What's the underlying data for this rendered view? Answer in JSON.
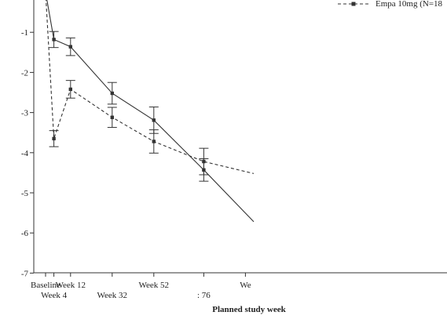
{
  "chart_data": {
    "type": "line",
    "title": "",
    "xlabel": "Planned study week",
    "ylabel": "",
    "x_tick_labels": [
      {
        "label": "Baseline",
        "week": 0,
        "row": 1
      },
      {
        "label": "Week 4",
        "week": 4,
        "row": 2
      },
      {
        "label": "Week 12",
        "week": 12,
        "row": 1
      },
      {
        "label": "Week 32",
        "week": 32,
        "row": 2
      },
      {
        "label": "Week 52",
        "week": 52,
        "row": 1
      },
      {
        "label": ": 76",
        "week": 76,
        "row": 2
      },
      {
        "label": "We",
        "week": 96,
        "row": 1
      }
    ],
    "y_ticks": [
      -1,
      -2,
      -3,
      -4,
      -5,
      -6,
      -7
    ],
    "ylim": [
      -7,
      0
    ],
    "xlim": [
      0,
      100
    ],
    "grid": false,
    "legend_position": "top-right",
    "series": [
      {
        "name": "",
        "style": "solid",
        "color": "#333333",
        "points": [
          {
            "x": 0,
            "y": 0,
            "err": null
          },
          {
            "x": 4,
            "y": -1.18,
            "err": 0.2
          },
          {
            "x": 12,
            "y": -1.36,
            "err": 0.22
          },
          {
            "x": 32,
            "y": -2.52,
            "err": 0.27
          },
          {
            "x": 52,
            "y": -3.19,
            "err": 0.33
          },
          {
            "x": 76,
            "y": -4.43,
            "err": 0.28
          },
          {
            "x": 100,
            "y": -5.72,
            "err": null
          }
        ]
      },
      {
        "name": "Empa 10mg (N=18",
        "style": "dashed",
        "color": "#333333",
        "points": [
          {
            "x": 0,
            "y": 0,
            "err": null
          },
          {
            "x": 4,
            "y": -3.65,
            "err": 0.2
          },
          {
            "x": 12,
            "y": -2.42,
            "err": 0.22
          },
          {
            "x": 32,
            "y": -3.12,
            "err": 0.25
          },
          {
            "x": 52,
            "y": -3.72,
            "err": 0.29
          },
          {
            "x": 76,
            "y": -4.22,
            "err": 0.33
          },
          {
            "x": 100,
            "y": -4.52,
            "err": null
          }
        ]
      }
    ]
  }
}
